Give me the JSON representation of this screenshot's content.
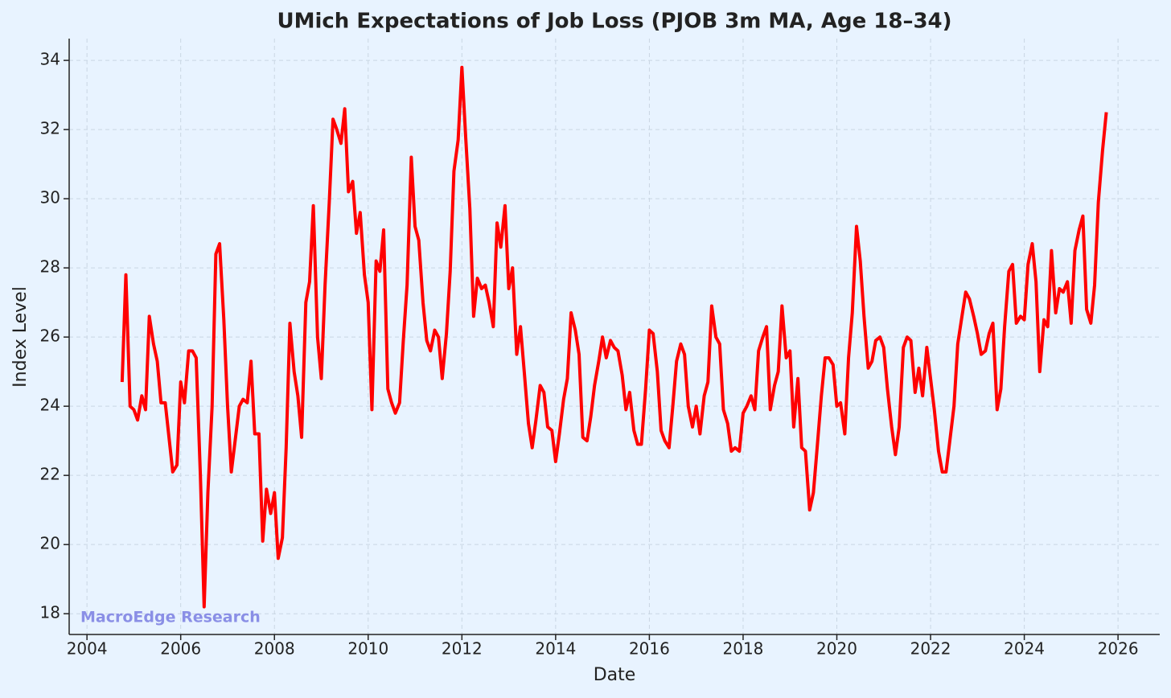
{
  "chart_data": {
    "type": "line",
    "title": "UMich Expectations of Job Loss (PJOB 3m MA, Age 18–34)",
    "xlabel": "Date",
    "ylabel": "Index Level",
    "watermark": "MacroEdge Research",
    "xlim": [
      2003.62,
      2026.89
    ],
    "ylim": [
      17.4,
      34.63
    ],
    "xticks": [
      2004,
      2006,
      2008,
      2010,
      2012,
      2014,
      2016,
      2018,
      2020,
      2022,
      2024,
      2026
    ],
    "yticks": [
      18,
      20,
      22,
      24,
      26,
      28,
      30,
      32,
      34
    ],
    "grid": true,
    "x": [
      2004.75,
      2004.83,
      2004.92,
      2005,
      2005.08,
      2005.17,
      2005.25,
      2005.33,
      2005.42,
      2005.5,
      2005.58,
      2005.67,
      2005.75,
      2005.83,
      2005.92,
      2006,
      2006.08,
      2006.17,
      2006.25,
      2006.33,
      2006.42,
      2006.5,
      2006.58,
      2006.67,
      2006.75,
      2006.83,
      2006.92,
      2007,
      2007.08,
      2007.17,
      2007.25,
      2007.33,
      2007.42,
      2007.5,
      2007.58,
      2007.67,
      2007.75,
      2007.83,
      2007.92,
      2008,
      2008.08,
      2008.17,
      2008.25,
      2008.33,
      2008.42,
      2008.5,
      2008.58,
      2008.67,
      2008.75,
      2008.83,
      2008.92,
      2009,
      2009.08,
      2009.17,
      2009.25,
      2009.33,
      2009.42,
      2009.5,
      2009.58,
      2009.67,
      2009.75,
      2009.83,
      2009.92,
      2010,
      2010.08,
      2010.17,
      2010.25,
      2010.33,
      2010.42,
      2010.5,
      2010.58,
      2010.67,
      2010.75,
      2010.83,
      2010.92,
      2011,
      2011.08,
      2011.17,
      2011.25,
      2011.33,
      2011.42,
      2011.5,
      2011.58,
      2011.67,
      2011.75,
      2011.83,
      2011.92,
      2012,
      2012.08,
      2012.17,
      2012.25,
      2012.33,
      2012.42,
      2012.5,
      2012.58,
      2012.67,
      2012.75,
      2012.83,
      2012.92,
      2013,
      2013.08,
      2013.17,
      2013.25,
      2013.33,
      2013.42,
      2013.5,
      2013.58,
      2013.67,
      2013.75,
      2013.83,
      2013.92,
      2014,
      2014.08,
      2014.17,
      2014.25,
      2014.33,
      2014.42,
      2014.5,
      2014.58,
      2014.67,
      2014.75,
      2014.83,
      2014.92,
      2015,
      2015.08,
      2015.17,
      2015.25,
      2015.33,
      2015.42,
      2015.5,
      2015.58,
      2015.67,
      2015.75,
      2015.83,
      2015.92,
      2016,
      2016.08,
      2016.17,
      2016.25,
      2016.33,
      2016.42,
      2016.5,
      2016.58,
      2016.67,
      2016.75,
      2016.83,
      2016.92,
      2017,
      2017.08,
      2017.17,
      2017.25,
      2017.33,
      2017.42,
      2017.5,
      2017.58,
      2017.67,
      2017.75,
      2017.83,
      2017.92,
      2018,
      2018.08,
      2018.17,
      2018.25,
      2018.33,
      2018.42,
      2018.5,
      2018.58,
      2018.67,
      2018.75,
      2018.83,
      2018.92,
      2019,
      2019.08,
      2019.17,
      2019.25,
      2019.33,
      2019.42,
      2019.5,
      2019.58,
      2019.67,
      2019.75,
      2019.83,
      2019.92,
      2020,
      2020.08,
      2020.17,
      2020.25,
      2020.33,
      2020.42,
      2020.5,
      2020.58,
      2020.67,
      2020.75,
      2020.83,
      2020.92,
      2021,
      2021.08,
      2021.17,
      2021.25,
      2021.33,
      2021.42,
      2021.5,
      2021.58,
      2021.67,
      2021.75,
      2021.83,
      2021.92,
      2022,
      2022.08,
      2022.17,
      2022.25,
      2022.33,
      2022.42,
      2022.5,
      2022.58,
      2022.67,
      2022.75,
      2022.83,
      2022.92,
      2023,
      2023.08,
      2023.17,
      2023.25,
      2023.33,
      2023.42,
      2023.5,
      2023.58,
      2023.67,
      2023.75,
      2023.83,
      2023.92,
      2024,
      2024.08,
      2024.17,
      2024.25,
      2024.33,
      2024.42,
      2024.5,
      2024.58,
      2024.67,
      2024.75,
      2024.83,
      2024.92,
      2025,
      2025.08,
      2025.17,
      2025.25,
      2025.33,
      2025.42,
      2025.5,
      2025.58,
      2025.67,
      2025.75
    ],
    "series": [
      {
        "name": "PJOB 3m MA",
        "color": "#ff0000",
        "values": [
          24.7,
          27.8,
          24.0,
          23.9,
          23.6,
          24.3,
          23.9,
          26.6,
          25.8,
          25.3,
          24.1,
          24.1,
          23.1,
          22.1,
          22.3,
          24.7,
          24.1,
          25.6,
          25.6,
          25.4,
          22.0,
          18.2,
          21.5,
          24.0,
          28.4,
          28.7,
          26.5,
          24.0,
          22.1,
          23.1,
          24.0,
          24.2,
          24.1,
          25.3,
          23.2,
          23.2,
          20.1,
          21.6,
          20.9,
          21.5,
          19.6,
          20.2,
          22.8,
          26.4,
          25.0,
          24.3,
          23.1,
          27.0,
          27.6,
          29.8,
          26.0,
          24.8,
          27.5,
          29.9,
          32.3,
          32.0,
          31.6,
          32.6,
          30.2,
          30.5,
          29.0,
          29.6,
          27.8,
          27.0,
          23.9,
          28.2,
          27.9,
          29.1,
          24.5,
          24.1,
          23.8,
          24.1,
          25.9,
          27.5,
          31.2,
          29.2,
          28.8,
          27.0,
          25.9,
          25.6,
          26.2,
          26.0,
          24.8,
          26.1,
          27.9,
          30.8,
          31.7,
          33.8,
          31.8,
          29.7,
          26.6,
          27.7,
          27.4,
          27.5,
          27.0,
          26.3,
          29.3,
          28.6,
          29.8,
          27.4,
          28.0,
          25.5,
          26.3,
          25.0,
          23.5,
          22.8,
          23.6,
          24.6,
          24.4,
          23.4,
          23.3,
          22.4,
          23.2,
          24.2,
          24.8,
          26.7,
          26.2,
          25.5,
          23.1,
          23.0,
          23.7,
          24.6,
          25.3,
          26.0,
          25.4,
          25.9,
          25.7,
          25.6,
          24.9,
          23.9,
          24.4,
          23.3,
          22.9,
          22.9,
          24.5,
          26.2,
          26.1,
          25.0,
          23.3,
          23.0,
          22.8,
          24.0,
          25.3,
          25.8,
          25.5,
          24.0,
          23.4,
          24.0,
          23.2,
          24.3,
          24.7,
          26.9,
          26.0,
          25.8,
          23.9,
          23.5,
          22.7,
          22.8,
          22.7,
          23.8,
          24.0,
          24.3,
          23.9,
          25.6,
          26.0,
          26.3,
          23.9,
          24.6,
          25.0,
          26.9,
          25.4,
          25.6,
          23.4,
          24.8,
          22.8,
          22.7,
          21.0,
          21.5,
          22.8,
          24.3,
          25.4,
          25.4,
          25.2,
          24.0,
          24.1,
          23.2,
          25.4,
          26.7,
          29.2,
          28.2,
          26.6,
          25.1,
          25.3,
          25.9,
          26.0,
          25.7,
          24.5,
          23.4,
          22.6,
          23.4,
          25.7,
          26.0,
          25.9,
          24.4,
          25.1,
          24.3,
          25.7,
          24.8,
          23.9,
          22.7,
          22.1,
          22.1,
          23.1,
          24.0,
          25.8,
          26.6,
          27.3,
          27.1,
          26.6,
          26.1,
          25.5,
          25.6,
          26.1,
          26.4,
          23.9,
          24.5,
          26.3,
          27.9,
          28.1,
          26.4,
          26.6,
          26.5,
          28.1,
          28.7,
          27.6,
          25.0,
          26.5,
          26.3,
          28.5,
          26.7,
          27.4,
          27.3,
          27.6,
          26.4,
          28.5,
          29.1,
          29.5,
          26.8,
          26.4,
          27.5,
          29.9,
          31.4,
          32.5
        ]
      }
    ]
  }
}
